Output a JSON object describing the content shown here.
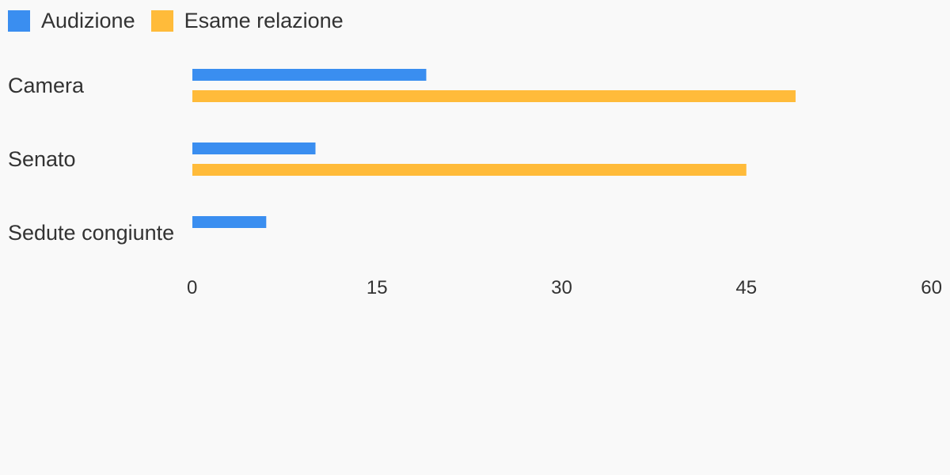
{
  "chart_data": {
    "type": "bar",
    "orientation": "horizontal",
    "categories": [
      "Camera",
      "Senato",
      "Sedute congiunte"
    ],
    "series": [
      {
        "name": "Audizione",
        "values": [
          19,
          10,
          6
        ],
        "color": "#3a8ef0"
      },
      {
        "name": "Esame relazione",
        "values": [
          49,
          45,
          0
        ],
        "color": "#ffbb3a"
      }
    ],
    "xticks": [
      "0",
      "15",
      "30",
      "45",
      "60"
    ],
    "xlim": [
      0,
      60
    ],
    "legend": "top-left",
    "grid": false
  }
}
